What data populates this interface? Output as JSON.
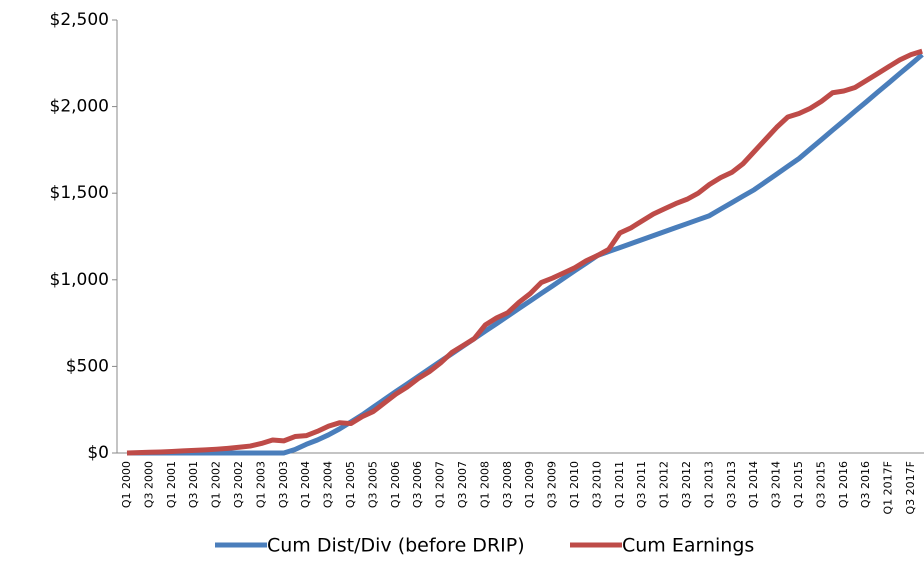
{
  "chart_data": {
    "type": "line",
    "categories": [
      "Q1 2000",
      null,
      "Q3 2000",
      null,
      "Q1 2001",
      null,
      "Q3 2001",
      null,
      "Q1 2002",
      null,
      "Q3 2002",
      null,
      "Q1 2003",
      null,
      "Q3 2003",
      null,
      "Q1 2004",
      null,
      "Q3 2004",
      null,
      "Q1 2005",
      null,
      "Q3 2005",
      null,
      "Q1 2006",
      null,
      "Q3 2006",
      null,
      "Q1 2007",
      null,
      "Q3 2007",
      null,
      "Q1 2008",
      null,
      "Q3 2008",
      null,
      "Q1 2009",
      null,
      "Q3 2009",
      null,
      "Q1 2010",
      null,
      "Q3 2010",
      null,
      "Q1 2011",
      null,
      "Q3 2011",
      null,
      "Q1 2012",
      null,
      "Q3 2012",
      null,
      "Q1 2013",
      null,
      "Q3 2013",
      null,
      "Q1 2014",
      null,
      "Q3 2014",
      null,
      "Q1 2015",
      null,
      "Q3 2015",
      null,
      "Q1 2016",
      null,
      "Q3 2016",
      null,
      "Q1 2017F",
      null,
      "Q3 2017F",
      null
    ],
    "series": [
      {
        "name": "Cum Dist/Div (before DRIP)",
        "color": "#4a7ebb",
        "values": [
          0,
          0,
          0,
          0,
          0,
          0,
          0,
          0,
          0,
          0,
          0,
          0,
          0,
          0,
          0,
          20,
          50,
          75,
          105,
          140,
          180,
          220,
          265,
          310,
          355,
          398,
          442,
          486,
          530,
          573,
          617,
          660,
          704,
          747,
          791,
          835,
          878,
          922,
          965,
          1009,
          1053,
          1096,
          1140,
          1163,
          1186,
          1209,
          1232,
          1255,
          1278,
          1301,
          1324,
          1347,
          1370,
          1408,
          1445,
          1483,
          1520,
          1565,
          1610,
          1655,
          1700,
          1755,
          1809,
          1864,
          1918,
          1973,
          2027,
          2082,
          2136,
          2191,
          2245,
          2300
        ]
      },
      {
        "name": "Cum Earnings",
        "color": "#be4b48",
        "values": [
          0,
          2,
          4,
          6,
          9,
          12,
          15,
          18,
          22,
          27,
          33,
          40,
          55,
          75,
          70,
          95,
          100,
          125,
          155,
          175,
          170,
          210,
          240,
          290,
          340,
          380,
          430,
          470,
          520,
          580,
          620,
          660,
          740,
          780,
          810,
          870,
          920,
          985,
          1010,
          1040,
          1070,
          1110,
          1140,
          1175,
          1270,
          1300,
          1340,
          1380,
          1410,
          1440,
          1465,
          1500,
          1550,
          1590,
          1620,
          1670,
          1740,
          1810,
          1880,
          1940,
          1960,
          1990,
          2030,
          2080,
          2090,
          2110,
          2150,
          2190,
          2230,
          2270,
          2300,
          2320
        ]
      }
    ],
    "ylim": [
      0,
      2500
    ],
    "yticks": [
      {
        "value": 0,
        "label": "$0"
      },
      {
        "value": 500,
        "label": "$500"
      },
      {
        "value": 1000,
        "label": "$1,000"
      },
      {
        "value": 1500,
        "label": "$1,500"
      },
      {
        "value": 2000,
        "label": "$2,000"
      },
      {
        "value": 2500,
        "label": "$2,500"
      }
    ],
    "legend": "bottom"
  }
}
